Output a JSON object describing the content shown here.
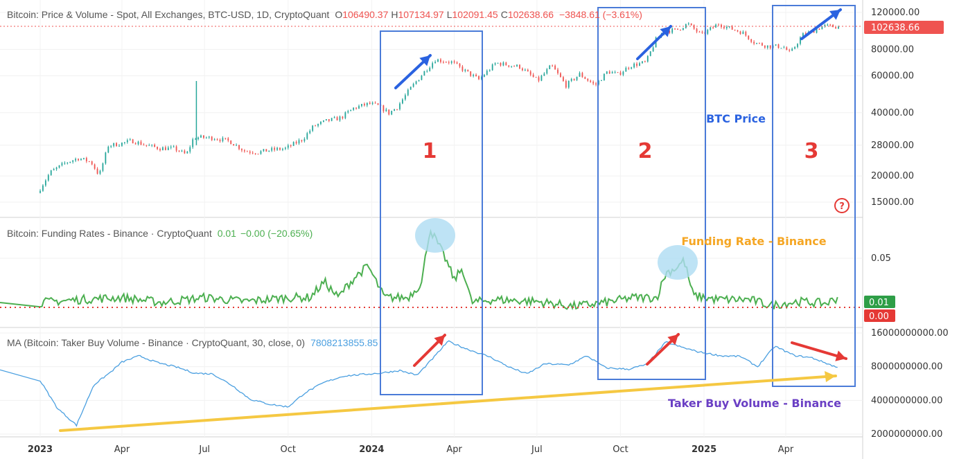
{
  "header": {
    "title": "Bitcoin: Price & Volume - Spot, All Exchanges, BTC-USD, 1D, CryptoQuant",
    "open_label": "O",
    "open": "106490.37",
    "high_label": "H",
    "high": "107134.97",
    "low_label": "L",
    "low": "102091.45",
    "close_label": "C",
    "close": "102638.66",
    "change": "−3848.61 (−3.61%)"
  },
  "panes": {
    "price": {
      "price_badge": "102638.66",
      "help_icon": "?"
    },
    "funding": {
      "legend": "Bitcoin: Funding Rates - Binance · CryptoQuant",
      "value": "0.01",
      "change": "−0.00 (−20.65%)",
      "badge_current": "0.01",
      "badge_zero": "0.00"
    },
    "volume": {
      "legend": "MA (Bitcoin: Taker Buy Volume - Binance · CryptoQuant, 30, close, 0)",
      "value": "7808213855.85"
    }
  },
  "annotations": {
    "btc_price": "BTC Price",
    "funding_rate": "Funding Rate - Binance",
    "taker_volume": "Taker Buy Volume - Binance",
    "box1": "1",
    "box2": "2",
    "box3": "3"
  },
  "colors": {
    "up": "#26a69a",
    "down": "#ef5350",
    "funding": "#4caf50",
    "volume": "#4a9fe0",
    "box": "#4a7bd8",
    "arrow_blue": "#2a62e0",
    "arrow_red": "#e53935",
    "trend": "#f5c842",
    "label_red": "#e53935",
    "label_blue": "#2a62e0",
    "label_orange": "#f5a623",
    "label_purple": "#6a3fc4"
  },
  "chart_data": [
    {
      "type": "candlestick",
      "title": "Bitcoin: Price & Volume - Spot, All Exchanges, BTC-USD, 1D, CryptoQuant",
      "scale": "log",
      "x_ticks": [
        "2023",
        "Apr",
        "Jul",
        "Oct",
        "2024",
        "Apr",
        "Jul",
        "Oct",
        "2025",
        "Apr"
      ],
      "y_ticks": [
        "120000.00",
        "80000.00",
        "60000.00",
        "40000.00",
        "28000.00",
        "20000.00",
        "15000.00"
      ],
      "ylim": [
        13000,
        130000
      ],
      "x": [
        "2023-01-01",
        "2023-01-15",
        "2023-02-01",
        "2023-02-15",
        "2023-03-01",
        "2023-03-10",
        "2023-03-20",
        "2023-04-01",
        "2023-04-15",
        "2023-05-01",
        "2023-05-15",
        "2023-06-01",
        "2023-06-14",
        "2023-06-22",
        "2023-07-01",
        "2023-07-15",
        "2023-08-01",
        "2023-08-17",
        "2023-09-01",
        "2023-09-15",
        "2023-10-01",
        "2023-10-20",
        "2023-11-01",
        "2023-11-15",
        "2023-12-01",
        "2023-12-15",
        "2024-01-01",
        "2024-01-12",
        "2024-01-23",
        "2024-02-01",
        "2024-02-15",
        "2024-03-01",
        "2024-03-14",
        "2024-04-01",
        "2024-04-15",
        "2024-05-01",
        "2024-05-20",
        "2024-06-01",
        "2024-06-15",
        "2024-07-05",
        "2024-07-20",
        "2024-08-05",
        "2024-08-20",
        "2024-09-06",
        "2024-09-20",
        "2024-10-01",
        "2024-10-15",
        "2024-11-01",
        "2024-11-12",
        "2024-11-22",
        "2024-12-05",
        "2024-12-17",
        "2025-01-01",
        "2025-01-20",
        "2025-02-01",
        "2025-02-15",
        "2025-03-01",
        "2025-03-15",
        "2025-04-01",
        "2025-04-09",
        "2025-04-22",
        "2025-05-01",
        "2025-05-15",
        "2025-05-29"
      ],
      "series": [
        {
          "values": [
            16600,
            20800,
            23100,
            24300,
            23300,
            20100,
            27900,
            28400,
            29400,
            28000,
            27100,
            27000,
            25200,
            30400,
            30500,
            30300,
            29200,
            26300,
            25900,
            26600,
            27000,
            29900,
            34500,
            36500,
            37800,
            42000,
            44200,
            43000,
            39800,
            42500,
            51700,
            62000,
            71500,
            69600,
            63500,
            57500,
            69000,
            67600,
            66200,
            56700,
            67100,
            54000,
            61000,
            54000,
            63000,
            60800,
            67000,
            69500,
            89000,
            98000,
            99000,
            106000,
            93800,
            106000,
            101000,
            96500,
            86000,
            83000,
            82500,
            76500,
            93500,
            96500,
            103500,
            102638.66
          ]
        }
      ]
    },
    {
      "type": "line",
      "title": "Bitcoin: Funding Rates - Binance · CryptoQuant",
      "y_ticks": [
        "0.05"
      ],
      "ylim": [
        -0.02,
        0.1
      ],
      "x": [
        "2023-01-01",
        "2023-02-15",
        "2023-04-01",
        "2023-05-15",
        "2023-07-01",
        "2023-08-15",
        "2023-10-01",
        "2023-10-25",
        "2023-11-10",
        "2023-11-25",
        "2023-12-05",
        "2023-12-15",
        "2023-12-28",
        "2024-01-15",
        "2024-02-10",
        "2024-02-25",
        "2024-03-05",
        "2024-03-12",
        "2024-03-22",
        "2024-04-01",
        "2024-04-10",
        "2024-04-20",
        "2024-05-15",
        "2024-07-01",
        "2024-08-10",
        "2024-09-15",
        "2024-10-15",
        "2024-11-10",
        "2024-11-20",
        "2024-12-01",
        "2024-12-10",
        "2024-12-20",
        "2025-01-15",
        "2025-02-20",
        "2025-03-15",
        "2025-04-15",
        "2025-05-15",
        "2025-05-29"
      ],
      "series": [
        {
          "values": [
            0.005,
            0.008,
            0.01,
            0.005,
            0.01,
            0.006,
            0.01,
            0.01,
            0.026,
            0.01,
            0.022,
            0.032,
            0.042,
            0.01,
            0.01,
            0.025,
            0.08,
            0.068,
            0.05,
            0.028,
            0.04,
            0.005,
            0.008,
            0.006,
            0.001,
            0.005,
            0.01,
            0.01,
            0.035,
            0.04,
            0.048,
            0.012,
            0.008,
            0.008,
            0.002,
            0.006,
            0.004,
            0.01
          ]
        }
      ]
    },
    {
      "type": "line",
      "title": "MA (Bitcoin: Taker Buy Volume - Binance · CryptoQuant, 30, close, 0)",
      "y_ticks": [
        "16000000000.00",
        "8000000000.00",
        "4000000000.00",
        "2000000000.00"
      ],
      "scale": "log",
      "ylim": [
        1800000000,
        17000000000
      ],
      "x": [
        "2023-01-01",
        "2023-01-20",
        "2023-02-10",
        "2023-03-01",
        "2023-03-20",
        "2023-04-01",
        "2023-04-20",
        "2023-05-10",
        "2023-06-01",
        "2023-06-20",
        "2023-07-10",
        "2023-08-01",
        "2023-08-20",
        "2023-09-10",
        "2023-10-01",
        "2023-10-20",
        "2023-11-10",
        "2023-12-01",
        "2023-12-20",
        "2024-01-10",
        "2024-02-01",
        "2024-02-20",
        "2024-03-10",
        "2024-03-25",
        "2024-04-15",
        "2024-05-10",
        "2024-06-01",
        "2024-06-20",
        "2024-07-10",
        "2024-08-05",
        "2024-08-25",
        "2024-09-15",
        "2024-10-10",
        "2024-10-30",
        "2024-11-20",
        "2024-12-05",
        "2024-12-25",
        "2025-01-20",
        "2025-02-10",
        "2025-03-01",
        "2025-03-20",
        "2025-04-10",
        "2025-04-30",
        "2025-05-29"
      ],
      "series": [
        {
          "values": [
            6000000000,
            3400000000,
            2400000000,
            5500000000,
            7200000000,
            8800000000,
            10000000000,
            8700000000,
            7900000000,
            7000000000,
            6900000000,
            5400000000,
            4100000000,
            3700000000,
            3500000000,
            4700000000,
            5800000000,
            6600000000,
            6800000000,
            7000000000,
            7400000000,
            6700000000,
            9800000000,
            13500000000,
            11500000000,
            9800000000,
            7900000000,
            6900000000,
            8500000000,
            8300000000,
            10000000000,
            7800000000,
            7600000000,
            8400000000,
            13300000000,
            12100000000,
            10900000000,
            10000000000,
            9900000000,
            8000000000,
            12200000000,
            10100000000,
            9600000000,
            7808213855.85
          ]
        }
      ]
    }
  ]
}
